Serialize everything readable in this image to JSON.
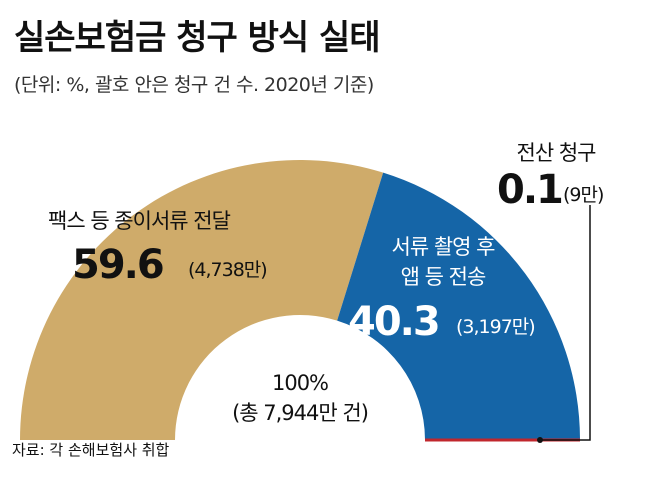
{
  "title": "실손보험금 청구 방식 실태",
  "subtitle": "(단위: %, 괄호 안은 청구 건 수. 2020년 기준)",
  "source": "자료: 각 손해보험사 취합",
  "total": {
    "label": "100%",
    "note": "(총 7,944만 건)"
  },
  "colors": {
    "fax": "#cfab6a",
    "app": "#1565a7",
    "electronic": "#c0272d",
    "text_light": "#ffffff",
    "text_dark": "#111111"
  },
  "chart_data": {
    "type": "pie",
    "title": "실손보험금 청구 방식 실태",
    "unit": "%",
    "slices": [
      {
        "label_lines": [
          "팩스 등 종이서류 전달"
        ],
        "value": 59.6,
        "value_label": "59.6",
        "count_label": "(4,738만)"
      },
      {
        "label_lines": [
          "서류 촬영 후",
          "앱 등 전송"
        ],
        "value": 40.3,
        "value_label": "40.3",
        "count_label": "(3,197만)"
      },
      {
        "label_lines": [
          "전산 청구"
        ],
        "value": 0.1,
        "value_label": "0.1",
        "count_label": "(9만)"
      }
    ]
  }
}
